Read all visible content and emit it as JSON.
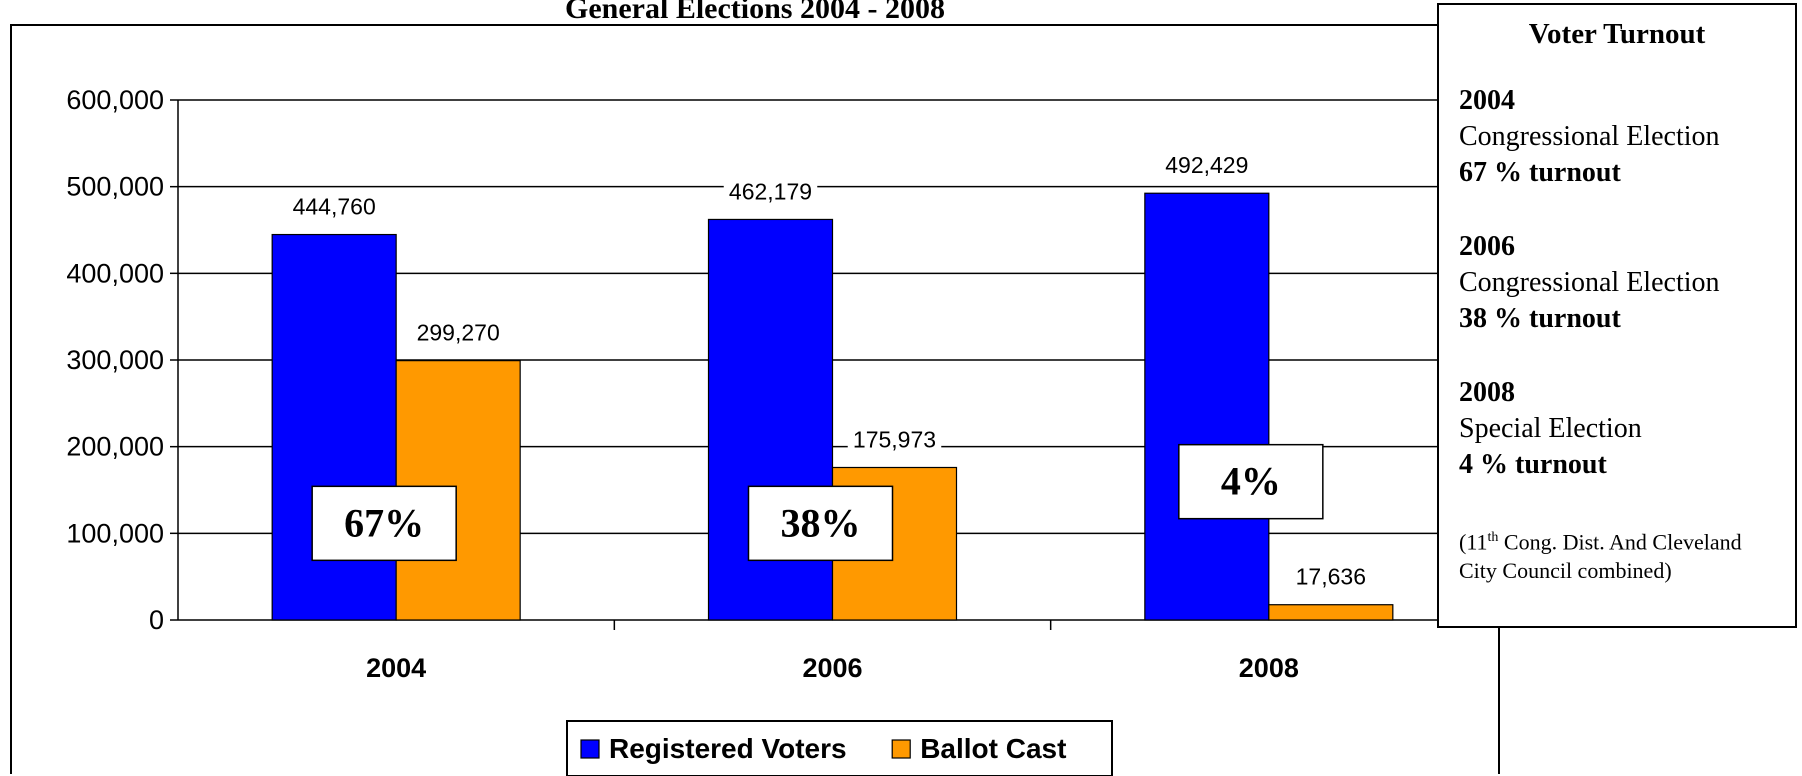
{
  "chart_data": {
    "type": "bar",
    "title": "General Elections 2004 - 2008",
    "categories": [
      "2004",
      "2006",
      "2008"
    ],
    "series": [
      {
        "name": "Registered Voters",
        "values": [
          444760,
          462179,
          492429
        ],
        "color": "#0000ff"
      },
      {
        "name": "Ballot Cast",
        "values": [
          299270,
          175973,
          17636
        ],
        "color": "#ff9900"
      }
    ],
    "value_labels": [
      [
        "444,760",
        "462,179",
        "492,429"
      ],
      [
        "299,270",
        "175,973",
        "17,636"
      ]
    ],
    "yticks": [
      "0",
      "100,000",
      "200,000",
      "300,000",
      "400,000",
      "500,000",
      "600,000"
    ],
    "ylim": [
      0,
      600000
    ],
    "grid": true,
    "legend": "bottom",
    "turnout_labels": [
      "67%",
      "38%",
      "4%"
    ]
  },
  "panel": {
    "title": "Voter Turnout",
    "entries": [
      {
        "year": "2004",
        "type": "Congressional Election",
        "turnout": "67 % turnout"
      },
      {
        "year": "2006",
        "type": "Congressional Election",
        "turnout": "38 % turnout"
      },
      {
        "year": "2008",
        "type": "Special Election",
        "turnout": "4 % turnout"
      }
    ],
    "note_pre": "(11",
    "note_sup": "th",
    "note_post": " Cong. Dist. And Cleveland City Council combined)"
  }
}
